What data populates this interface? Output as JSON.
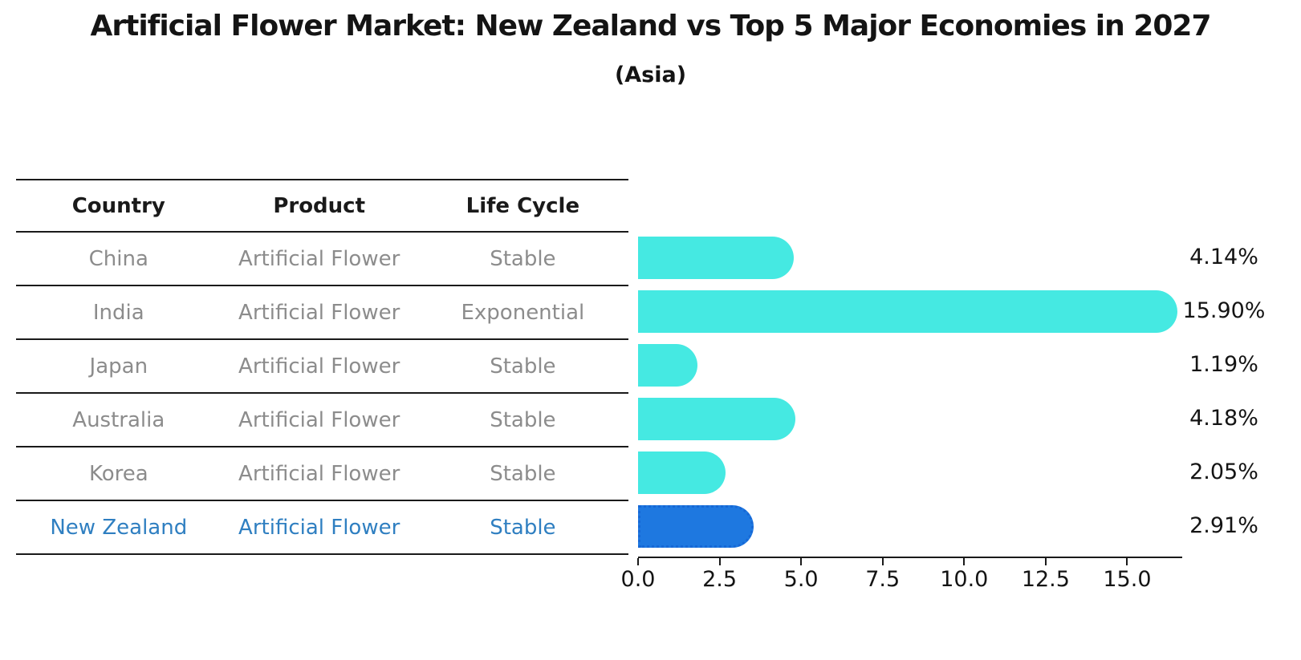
{
  "title": "Artificial Flower Market: New Zealand vs Top 5 Major Economies in 2027",
  "subtitle": "(Asia)",
  "table": {
    "headers": [
      "Country",
      "Product",
      "Life Cycle"
    ],
    "rows": [
      {
        "country": "China",
        "product": "Artificial Flower",
        "life_cycle": "Stable",
        "highlight": false
      },
      {
        "country": "India",
        "product": "Artificial Flower",
        "life_cycle": "Exponential",
        "highlight": false
      },
      {
        "country": "Japan",
        "product": "Artificial Flower",
        "life_cycle": "Stable",
        "highlight": false
      },
      {
        "country": "Australia",
        "product": "Artificial Flower",
        "life_cycle": "Stable",
        "highlight": false
      },
      {
        "country": "Korea",
        "product": "Artificial Flower",
        "life_cycle": "Stable",
        "highlight": true
      }
    ]
  },
  "table_highlight_row": {
    "country": "New Zealand",
    "product": "Artificial Flower",
    "life_cycle": "Stable"
  },
  "chart_data": {
    "type": "bar",
    "orientation": "horizontal",
    "title": "Artificial Flower Market: New Zealand vs Top 5 Major Economies in 2027 (Asia)",
    "categories": [
      "China",
      "India",
      "Japan",
      "Australia",
      "Korea",
      "New Zealand"
    ],
    "values": [
      4.14,
      15.9,
      1.19,
      4.18,
      2.05,
      2.91
    ],
    "value_labels": [
      "4.14%",
      "15.90%",
      "1.19%",
      "4.18%",
      "2.05%",
      "2.91%"
    ],
    "xlim": [
      0,
      16.7
    ],
    "x_ticks": [
      "0.0",
      "2.5",
      "5.0",
      "7.5",
      "10.0",
      "12.5",
      "15.0"
    ],
    "grid": false,
    "legend": "none",
    "bar_color": "#45e9e2",
    "highlight_color": "#1e78e0",
    "highlight_border_color": "#1668d6",
    "highlight_index": 5,
    "text_color": "#141414",
    "muted_text_color": "#8c8c8c",
    "highlight_text_color": "#2f7fc1"
  }
}
